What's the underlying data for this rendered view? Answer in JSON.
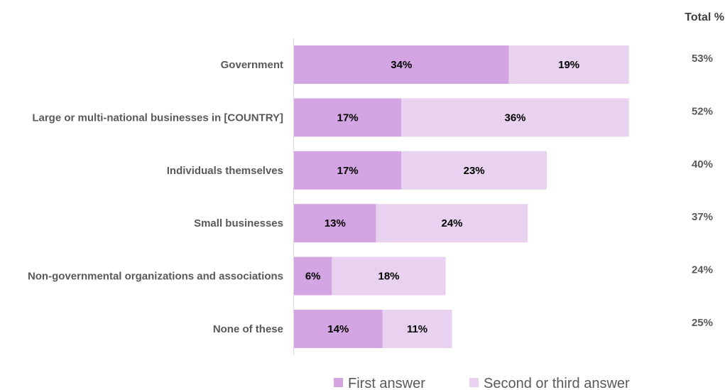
{
  "chart_data": {
    "type": "bar",
    "orientation": "horizontal",
    "stacked": true,
    "categories": [
      "Government",
      "Large or multi-national businesses in [COUNTRY]",
      "Individuals themselves",
      "Small businesses",
      "Non-governmental organizations and associations",
      "None of these"
    ],
    "series": [
      {
        "name": "First answer",
        "color": "#d4a5e3",
        "values": [
          34,
          17,
          17,
          13,
          6,
          14
        ],
        "labels": [
          "34%",
          "17%",
          "17%",
          "13%",
          "6%",
          "14%"
        ]
      },
      {
        "name": "Second or third answer",
        "color": "#e8d2f0",
        "values": [
          19,
          36,
          23,
          24,
          18,
          11
        ],
        "labels": [
          "19%",
          "36%",
          "23%",
          "24%",
          "18%",
          "11%"
        ]
      }
    ],
    "totals_header": "Total %",
    "totals": [
      "53%",
      "52%",
      "40%",
      "37%",
      "24%",
      "25%"
    ],
    "xlim": [
      0,
      60
    ],
    "grid": false,
    "legend_position": "bottom"
  }
}
